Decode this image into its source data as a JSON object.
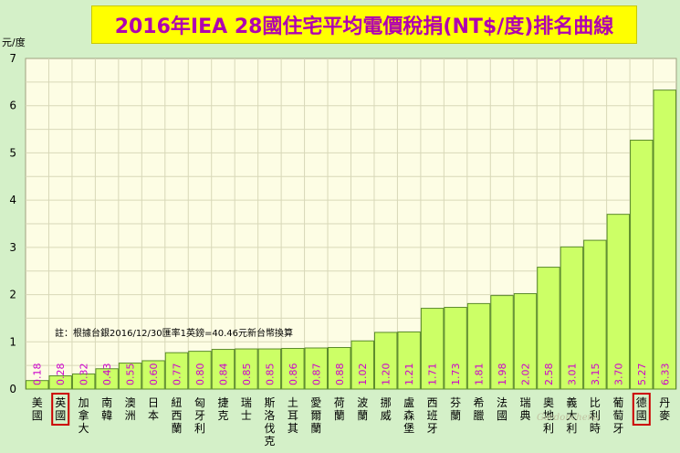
{
  "chart_data": {
    "type": "bar",
    "title": "2016年IEA 28國住宅平均電價稅捐(NT$/度)排名曲線",
    "ylabel": "元/度",
    "ylim": [
      0,
      7
    ],
    "yticks": [
      0,
      1,
      2,
      3,
      4,
      5,
      6,
      7
    ],
    "categories": [
      "美國",
      "英國",
      "加拿大",
      "南韓",
      "澳洲",
      "日本",
      "紐西蘭",
      "匈牙利",
      "捷克",
      "瑞士",
      "斯洛伐克",
      "土耳其",
      "愛爾蘭",
      "荷蘭",
      "波蘭",
      "挪威",
      "盧森堡",
      "西班牙",
      "芬蘭",
      "希臘",
      "法國",
      "瑞典",
      "奧地利",
      "義大利",
      "比利時",
      "葡萄牙",
      "德國",
      "丹麥"
    ],
    "values": [
      0.18,
      0.28,
      0.32,
      0.43,
      0.55,
      0.6,
      0.77,
      0.8,
      0.84,
      0.85,
      0.85,
      0.86,
      0.87,
      0.88,
      1.02,
      1.2,
      1.21,
      1.71,
      1.73,
      1.81,
      1.98,
      2.02,
      2.58,
      3.01,
      3.15,
      3.7,
      5.27,
      6.33
    ],
    "value_labels": [
      "0.18",
      "0.28",
      "0.32",
      "0.43",
      "0.55",
      "0.60",
      "0.77",
      "0.80",
      "0.84",
      "0.85",
      "0.85",
      "0.86",
      "0.87",
      "0.88",
      "1.02",
      "1.20",
      "1.21",
      "1.71",
      "1.73",
      "1.81",
      "1.98",
      "2.02",
      "2.58",
      "3.01",
      "3.15",
      "3.70",
      "5.27",
      "6.33"
    ],
    "highlighted": [
      "英國",
      "德國"
    ],
    "grid": true,
    "annotation": "註：根據台銀2016/12/30匯率1英鎊=40.46元新台幣換算",
    "watermark": "Gordoncheng",
    "colors": {
      "bar_fill": "#ccff66",
      "bar_stroke": "#5a8a2a",
      "value_label": "#cc00cc",
      "highlight_box": "#cc0000",
      "title_text": "#b000b0",
      "title_bg": "#ffff00",
      "plot_bg": "#fdfde4",
      "grid": "#d8d8b8"
    }
  }
}
